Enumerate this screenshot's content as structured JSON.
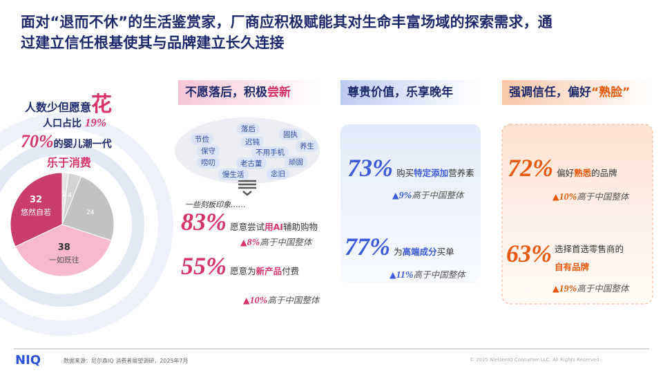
{
  "header": {
    "title_lines": [
      "面对“退而不休”的生活鉴赏家，厂商应积极赋能其对生命丰富场域的探索需求，通",
      "过建立信任根基使其与品牌建立长久连接"
    ]
  },
  "left": {
    "line1": "人数少但愿意",
    "line1_emph": "花",
    "line2": "人口占比",
    "line2_stat": "19%",
    "line3_stat": "70%",
    "line3": "的婴儿潮一代",
    "line4": "乐于消费"
  },
  "chart_data": {
    "type": "pie",
    "categories": [
      null,
      null,
      null,
      "一如既往",
      "悠然自若"
    ],
    "values": [
      2,
      4,
      24,
      38,
      32
    ],
    "colors": [
      "#e4e4e4",
      "#d4d4d4",
      "#c2c2c2",
      "#f6b9cd",
      "#c93d6e"
    ]
  },
  "col1": {
    "header": "不愿落后，积极",
    "header_emph": "尝新",
    "tags": [
      "节俭",
      "落后",
      "固执",
      "保守",
      "迟钝",
      "不用手机",
      "养生",
      "顽固",
      "老古董",
      "唠叨",
      "慢生活",
      "念旧"
    ],
    "cloud_caption": "一些刻板印象……",
    "stat1": "83%",
    "stat1_pre": "愿意尝试",
    "stat1_emph": "用AI",
    "stat1_post": "辅助购物",
    "delta1": "8%",
    "delta1_text": "高于中国整体",
    "stat2": "55%",
    "stat2_pre": "愿意为",
    "stat2_emph": "新产品",
    "stat2_post": "付费",
    "delta2": "10%",
    "delta2_text": "高于中国整体"
  },
  "col2": {
    "header": "尊贵价值，乐享晚年",
    "stat1": "73%",
    "stat1_pre": "购买",
    "stat1_emph": "特定添加",
    "stat1_post": "营养素",
    "delta1": "9%",
    "delta1_text": "高于中国整体",
    "stat2": "77%",
    "stat2_pre": "为",
    "stat2_emph": "高端成分",
    "stat2_post": "买单",
    "delta2": "11%",
    "delta2_text": "高于中国整体"
  },
  "col3": {
    "header": "强调信任，偏好",
    "header_emph": "“熟脸”",
    "stat1": "72%",
    "stat1_pre": "偏好",
    "stat1_emph": "熟悉",
    "stat1_post": "的品牌",
    "delta1": "10%",
    "delta1_text": "高于中国整体",
    "stat2": "63%",
    "stat2_pre": "选择首选零售商的",
    "stat2_emph": "自有品牌",
    "delta2": "19%",
    "delta2_text": "高于中国整体"
  },
  "footer": {
    "logo": "NIQ",
    "source": "数据来源：尼尔森IQ 消费者展望调研，2025年7月",
    "copyright": "© 2025 NielsenIQ Consumer LLC. All Rights Reserved"
  }
}
